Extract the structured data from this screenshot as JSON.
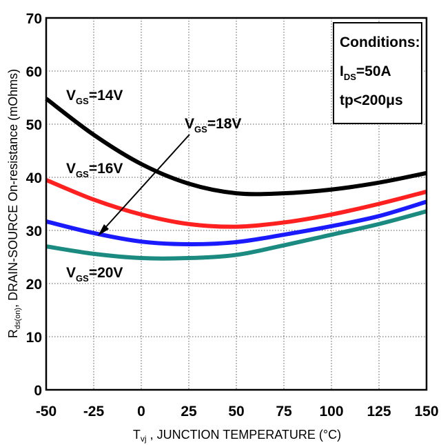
{
  "chart_data": {
    "type": "line",
    "xlabel": "Tvj , JUNCTION TEMPERATURE (°C)",
    "xlabel_parts": {
      "main": "T",
      "sub": "vj",
      "rest": " , JUNCTION TEMPERATURE (°C)"
    },
    "ylabel": "Rds(on), DRAIN-SOURCE On-resistance (mOhms)",
    "ylabel_parts": {
      "main": "R",
      "sub": "ds(on)",
      "rest": ", DRAIN-SOURCE On-resistance (mOhms)"
    },
    "xlim": [
      -50,
      150
    ],
    "ylim": [
      0,
      70
    ],
    "xticks": [
      "-50",
      "-25",
      "0",
      "25",
      "50",
      "75",
      "100",
      "125",
      "150"
    ],
    "yticks": [
      "0",
      "10",
      "20",
      "30",
      "40",
      "50",
      "60",
      "70"
    ],
    "grid": true,
    "series": [
      {
        "name": "VGS=14V",
        "label_main": "V",
        "label_sub": "GS",
        "label_rest": "=14V",
        "color": "#000000",
        "x": [
          -50,
          -25,
          0,
          25,
          50,
          75,
          100,
          125,
          150
        ],
        "y": [
          54.8,
          48.0,
          42.5,
          38.8,
          37.0,
          37.0,
          37.7,
          39.0,
          40.8
        ]
      },
      {
        "name": "VGS=16V",
        "label_main": "V",
        "label_sub": "GS",
        "label_rest": "=16V",
        "color": "#ff2020",
        "x": [
          -50,
          -25,
          0,
          25,
          50,
          75,
          100,
          125,
          150
        ],
        "y": [
          39.5,
          35.8,
          33.0,
          31.2,
          30.7,
          31.5,
          33.0,
          35.0,
          37.3
        ]
      },
      {
        "name": "VGS=18V",
        "label_main": "V",
        "label_sub": "GS",
        "label_rest": "=18V",
        "color": "#1a1aff",
        "x": [
          -50,
          -25,
          0,
          25,
          50,
          75,
          100,
          125,
          150
        ],
        "y": [
          31.7,
          29.5,
          27.9,
          27.4,
          27.8,
          29.2,
          30.8,
          32.7,
          35.4
        ]
      },
      {
        "name": "VGS=20V",
        "label_main": "V",
        "label_sub": "GS",
        "label_rest": "=20V",
        "color": "#1b8a80",
        "x": [
          -50,
          -25,
          0,
          25,
          50,
          75,
          100,
          125,
          150
        ],
        "y": [
          27.0,
          25.6,
          24.8,
          24.8,
          25.4,
          27.2,
          29.2,
          31.2,
          33.6
        ]
      }
    ],
    "annotations": {
      "conditions": {
        "title": "Conditions:",
        "line2_main": "I",
        "line2_sub": "DS",
        "line2_rest": "=50A",
        "line3": "tp<200μs"
      }
    }
  }
}
